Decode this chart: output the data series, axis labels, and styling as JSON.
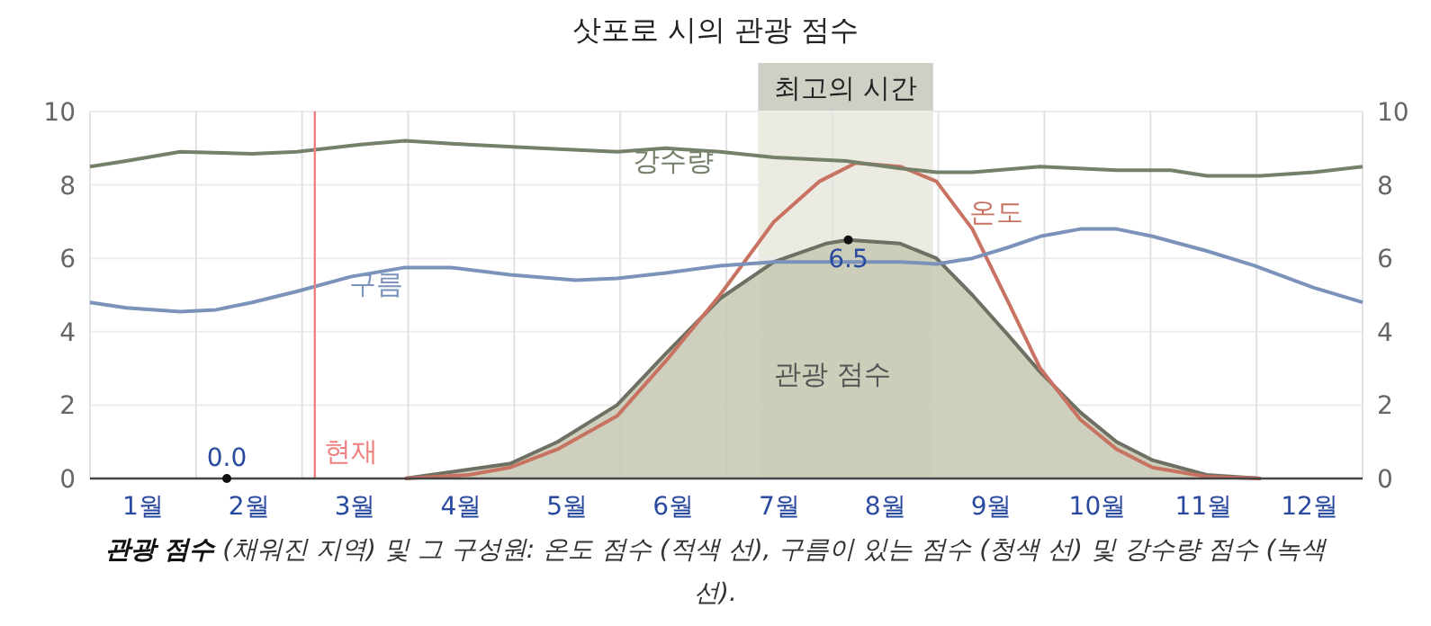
{
  "chart_data": {
    "type": "line",
    "title": "삿포로 시의 관광 점수",
    "xlim": [
      0,
      12
    ],
    "xticks": [
      {
        "value": 0,
        "label": null
      },
      {
        "value": 0.5,
        "label": "1월"
      },
      {
        "value": 1,
        "label": null
      },
      {
        "value": 1.5,
        "label": "2월"
      },
      {
        "value": 2,
        "label": null
      },
      {
        "value": 2.5,
        "label": "3월"
      },
      {
        "value": 3,
        "label": null
      },
      {
        "value": 3.5,
        "label": "4월"
      },
      {
        "value": 4,
        "label": null
      },
      {
        "value": 4.5,
        "label": "5월"
      },
      {
        "value": 5,
        "label": null
      },
      {
        "value": 5.5,
        "label": "6월"
      },
      {
        "value": 6,
        "label": null
      },
      {
        "value": 6.5,
        "label": "7월"
      },
      {
        "value": 7,
        "label": null
      },
      {
        "value": 7.5,
        "label": "8월"
      },
      {
        "value": 8,
        "label": null
      },
      {
        "value": 8.5,
        "label": "9월"
      },
      {
        "value": 9,
        "label": null
      },
      {
        "value": 9.5,
        "label": "10월"
      },
      {
        "value": 10,
        "label": null
      },
      {
        "value": 10.5,
        "label": "11월"
      },
      {
        "value": 11,
        "label": null
      },
      {
        "value": 11.5,
        "label": "12월"
      },
      {
        "value": 12,
        "label": null
      }
    ],
    "ylim": [
      0,
      10
    ],
    "yticks": [
      0,
      2,
      4,
      6,
      8,
      10
    ],
    "y2lim": [
      0,
      10
    ],
    "y2ticks": [
      0,
      2,
      4,
      6,
      8,
      10
    ],
    "grid": true,
    "series": [
      {
        "name": "관광 점수",
        "type": "area",
        "color": "#c9cbb6",
        "x": [
          2.97,
          3.96,
          4.41,
          4.97,
          5.43,
          5.94,
          6.45,
          6.94,
          7.15,
          7.64,
          7.98,
          8.32,
          8.66,
          8.96,
          9.34,
          9.68,
          10.02,
          10.53,
          11.04
        ],
        "values": [
          0,
          0.4,
          1.0,
          2.0,
          3.4,
          4.9,
          5.9,
          6.4,
          6.5,
          6.4,
          6.0,
          5.0,
          3.9,
          2.9,
          1.8,
          1.0,
          0.5,
          0.1,
          0
        ]
      },
      {
        "name": "온도",
        "color": "#c87262",
        "x": [
          2.97,
          3.57,
          3.96,
          4.41,
          4.97,
          5.43,
          5.94,
          6.45,
          6.88,
          7.22,
          7.64,
          7.98,
          8.32,
          8.66,
          8.96,
          9.34,
          9.68,
          10.02,
          10.53,
          11.04
        ],
        "values": [
          0,
          0.1,
          0.3,
          0.8,
          1.7,
          3.2,
          5.0,
          7.0,
          8.1,
          8.6,
          8.5,
          8.1,
          6.8,
          4.8,
          3.0,
          1.6,
          0.8,
          0.3,
          0.05,
          0
        ]
      },
      {
        "name": "구름",
        "color": "#7b93bb",
        "x": [
          0,
          0.34,
          0.85,
          1.19,
          1.53,
          1.95,
          2.46,
          2.97,
          3.4,
          3.96,
          4.58,
          4.97,
          5.43,
          5.94,
          6.45,
          7.13,
          7.64,
          7.98,
          8.32,
          8.66,
          8.96,
          9.34,
          9.68,
          10.02,
          10.53,
          10.98,
          11.54,
          12
        ],
        "values": [
          4.8,
          4.65,
          4.55,
          4.6,
          4.8,
          5.1,
          5.5,
          5.75,
          5.75,
          5.55,
          5.4,
          5.45,
          5.6,
          5.8,
          5.9,
          5.9,
          5.9,
          5.85,
          6.0,
          6.3,
          6.6,
          6.8,
          6.8,
          6.6,
          6.2,
          5.8,
          5.2,
          4.8
        ]
      },
      {
        "name": "강수량",
        "color": "#74806a",
        "x": [
          0,
          0.34,
          0.85,
          1.53,
          1.95,
          2.55,
          2.97,
          3.57,
          4.24,
          4.97,
          5.43,
          5.94,
          6.45,
          7.13,
          7.64,
          7.98,
          8.32,
          8.96,
          9.68,
          10.19,
          10.53,
          11.04,
          11.54,
          12
        ],
        "values": [
          8.5,
          8.65,
          8.9,
          8.85,
          8.9,
          9.1,
          9.2,
          9.1,
          9.0,
          8.9,
          9.0,
          8.9,
          8.75,
          8.65,
          8.45,
          8.35,
          8.35,
          8.5,
          8.4,
          8.4,
          8.25,
          8.25,
          8.35,
          8.5
        ]
      }
    ],
    "ref_lines": [
      {
        "axis": "x",
        "value": 2.12,
        "label": "현재",
        "color": "#f08080"
      }
    ],
    "bands": [
      {
        "axis": "x",
        "from": 6.3,
        "to": 7.95,
        "label": "최고의 시간",
        "color": "#ebebe1"
      }
    ],
    "annotations": [
      {
        "text": "0.0",
        "x": 1.29,
        "y": 0
      },
      {
        "text": "6.5",
        "x": 7.15,
        "y": 6.5
      },
      "**관광 점수** (채워진 지역) 및 그 구성원: 온도 점수 (적색 선), 구름이 있는 점수 (청색 선) 및 강수량 점수 (녹색 선)."
    ]
  }
}
